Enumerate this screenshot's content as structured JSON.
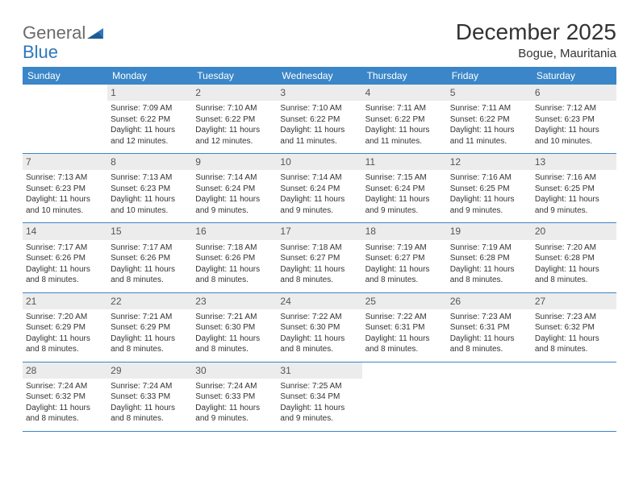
{
  "logo": {
    "text1": "General",
    "text2": "Blue"
  },
  "title": "December 2025",
  "location": "Bogue, Mauritania",
  "weekday_headers": [
    "Sunday",
    "Monday",
    "Tuesday",
    "Wednesday",
    "Thursday",
    "Friday",
    "Saturday"
  ],
  "colors": {
    "header_bg": "#3a86c8",
    "header_text": "#ffffff",
    "daynum_bg": "#ececec",
    "rule": "#3a86c8",
    "logo_gray": "#6b6b6b",
    "logo_blue": "#2f77bb"
  },
  "weeks": [
    [
      {
        "day": "",
        "sunrise": "",
        "sunset": "",
        "daylight": ""
      },
      {
        "day": "1",
        "sunrise": "Sunrise: 7:09 AM",
        "sunset": "Sunset: 6:22 PM",
        "daylight": "Daylight: 11 hours and 12 minutes."
      },
      {
        "day": "2",
        "sunrise": "Sunrise: 7:10 AM",
        "sunset": "Sunset: 6:22 PM",
        "daylight": "Daylight: 11 hours and 12 minutes."
      },
      {
        "day": "3",
        "sunrise": "Sunrise: 7:10 AM",
        "sunset": "Sunset: 6:22 PM",
        "daylight": "Daylight: 11 hours and 11 minutes."
      },
      {
        "day": "4",
        "sunrise": "Sunrise: 7:11 AM",
        "sunset": "Sunset: 6:22 PM",
        "daylight": "Daylight: 11 hours and 11 minutes."
      },
      {
        "day": "5",
        "sunrise": "Sunrise: 7:11 AM",
        "sunset": "Sunset: 6:22 PM",
        "daylight": "Daylight: 11 hours and 11 minutes."
      },
      {
        "day": "6",
        "sunrise": "Sunrise: 7:12 AM",
        "sunset": "Sunset: 6:23 PM",
        "daylight": "Daylight: 11 hours and 10 minutes."
      }
    ],
    [
      {
        "day": "7",
        "sunrise": "Sunrise: 7:13 AM",
        "sunset": "Sunset: 6:23 PM",
        "daylight": "Daylight: 11 hours and 10 minutes."
      },
      {
        "day": "8",
        "sunrise": "Sunrise: 7:13 AM",
        "sunset": "Sunset: 6:23 PM",
        "daylight": "Daylight: 11 hours and 10 minutes."
      },
      {
        "day": "9",
        "sunrise": "Sunrise: 7:14 AM",
        "sunset": "Sunset: 6:24 PM",
        "daylight": "Daylight: 11 hours and 9 minutes."
      },
      {
        "day": "10",
        "sunrise": "Sunrise: 7:14 AM",
        "sunset": "Sunset: 6:24 PM",
        "daylight": "Daylight: 11 hours and 9 minutes."
      },
      {
        "day": "11",
        "sunrise": "Sunrise: 7:15 AM",
        "sunset": "Sunset: 6:24 PM",
        "daylight": "Daylight: 11 hours and 9 minutes."
      },
      {
        "day": "12",
        "sunrise": "Sunrise: 7:16 AM",
        "sunset": "Sunset: 6:25 PM",
        "daylight": "Daylight: 11 hours and 9 minutes."
      },
      {
        "day": "13",
        "sunrise": "Sunrise: 7:16 AM",
        "sunset": "Sunset: 6:25 PM",
        "daylight": "Daylight: 11 hours and 9 minutes."
      }
    ],
    [
      {
        "day": "14",
        "sunrise": "Sunrise: 7:17 AM",
        "sunset": "Sunset: 6:26 PM",
        "daylight": "Daylight: 11 hours and 8 minutes."
      },
      {
        "day": "15",
        "sunrise": "Sunrise: 7:17 AM",
        "sunset": "Sunset: 6:26 PM",
        "daylight": "Daylight: 11 hours and 8 minutes."
      },
      {
        "day": "16",
        "sunrise": "Sunrise: 7:18 AM",
        "sunset": "Sunset: 6:26 PM",
        "daylight": "Daylight: 11 hours and 8 minutes."
      },
      {
        "day": "17",
        "sunrise": "Sunrise: 7:18 AM",
        "sunset": "Sunset: 6:27 PM",
        "daylight": "Daylight: 11 hours and 8 minutes."
      },
      {
        "day": "18",
        "sunrise": "Sunrise: 7:19 AM",
        "sunset": "Sunset: 6:27 PM",
        "daylight": "Daylight: 11 hours and 8 minutes."
      },
      {
        "day": "19",
        "sunrise": "Sunrise: 7:19 AM",
        "sunset": "Sunset: 6:28 PM",
        "daylight": "Daylight: 11 hours and 8 minutes."
      },
      {
        "day": "20",
        "sunrise": "Sunrise: 7:20 AM",
        "sunset": "Sunset: 6:28 PM",
        "daylight": "Daylight: 11 hours and 8 minutes."
      }
    ],
    [
      {
        "day": "21",
        "sunrise": "Sunrise: 7:20 AM",
        "sunset": "Sunset: 6:29 PM",
        "daylight": "Daylight: 11 hours and 8 minutes."
      },
      {
        "day": "22",
        "sunrise": "Sunrise: 7:21 AM",
        "sunset": "Sunset: 6:29 PM",
        "daylight": "Daylight: 11 hours and 8 minutes."
      },
      {
        "day": "23",
        "sunrise": "Sunrise: 7:21 AM",
        "sunset": "Sunset: 6:30 PM",
        "daylight": "Daylight: 11 hours and 8 minutes."
      },
      {
        "day": "24",
        "sunrise": "Sunrise: 7:22 AM",
        "sunset": "Sunset: 6:30 PM",
        "daylight": "Daylight: 11 hours and 8 minutes."
      },
      {
        "day": "25",
        "sunrise": "Sunrise: 7:22 AM",
        "sunset": "Sunset: 6:31 PM",
        "daylight": "Daylight: 11 hours and 8 minutes."
      },
      {
        "day": "26",
        "sunrise": "Sunrise: 7:23 AM",
        "sunset": "Sunset: 6:31 PM",
        "daylight": "Daylight: 11 hours and 8 minutes."
      },
      {
        "day": "27",
        "sunrise": "Sunrise: 7:23 AM",
        "sunset": "Sunset: 6:32 PM",
        "daylight": "Daylight: 11 hours and 8 minutes."
      }
    ],
    [
      {
        "day": "28",
        "sunrise": "Sunrise: 7:24 AM",
        "sunset": "Sunset: 6:32 PM",
        "daylight": "Daylight: 11 hours and 8 minutes."
      },
      {
        "day": "29",
        "sunrise": "Sunrise: 7:24 AM",
        "sunset": "Sunset: 6:33 PM",
        "daylight": "Daylight: 11 hours and 8 minutes."
      },
      {
        "day": "30",
        "sunrise": "Sunrise: 7:24 AM",
        "sunset": "Sunset: 6:33 PM",
        "daylight": "Daylight: 11 hours and 9 minutes."
      },
      {
        "day": "31",
        "sunrise": "Sunrise: 7:25 AM",
        "sunset": "Sunset: 6:34 PM",
        "daylight": "Daylight: 11 hours and 9 minutes."
      },
      {
        "day": "",
        "sunrise": "",
        "sunset": "",
        "daylight": ""
      },
      {
        "day": "",
        "sunrise": "",
        "sunset": "",
        "daylight": ""
      },
      {
        "day": "",
        "sunrise": "",
        "sunset": "",
        "daylight": ""
      }
    ]
  ]
}
